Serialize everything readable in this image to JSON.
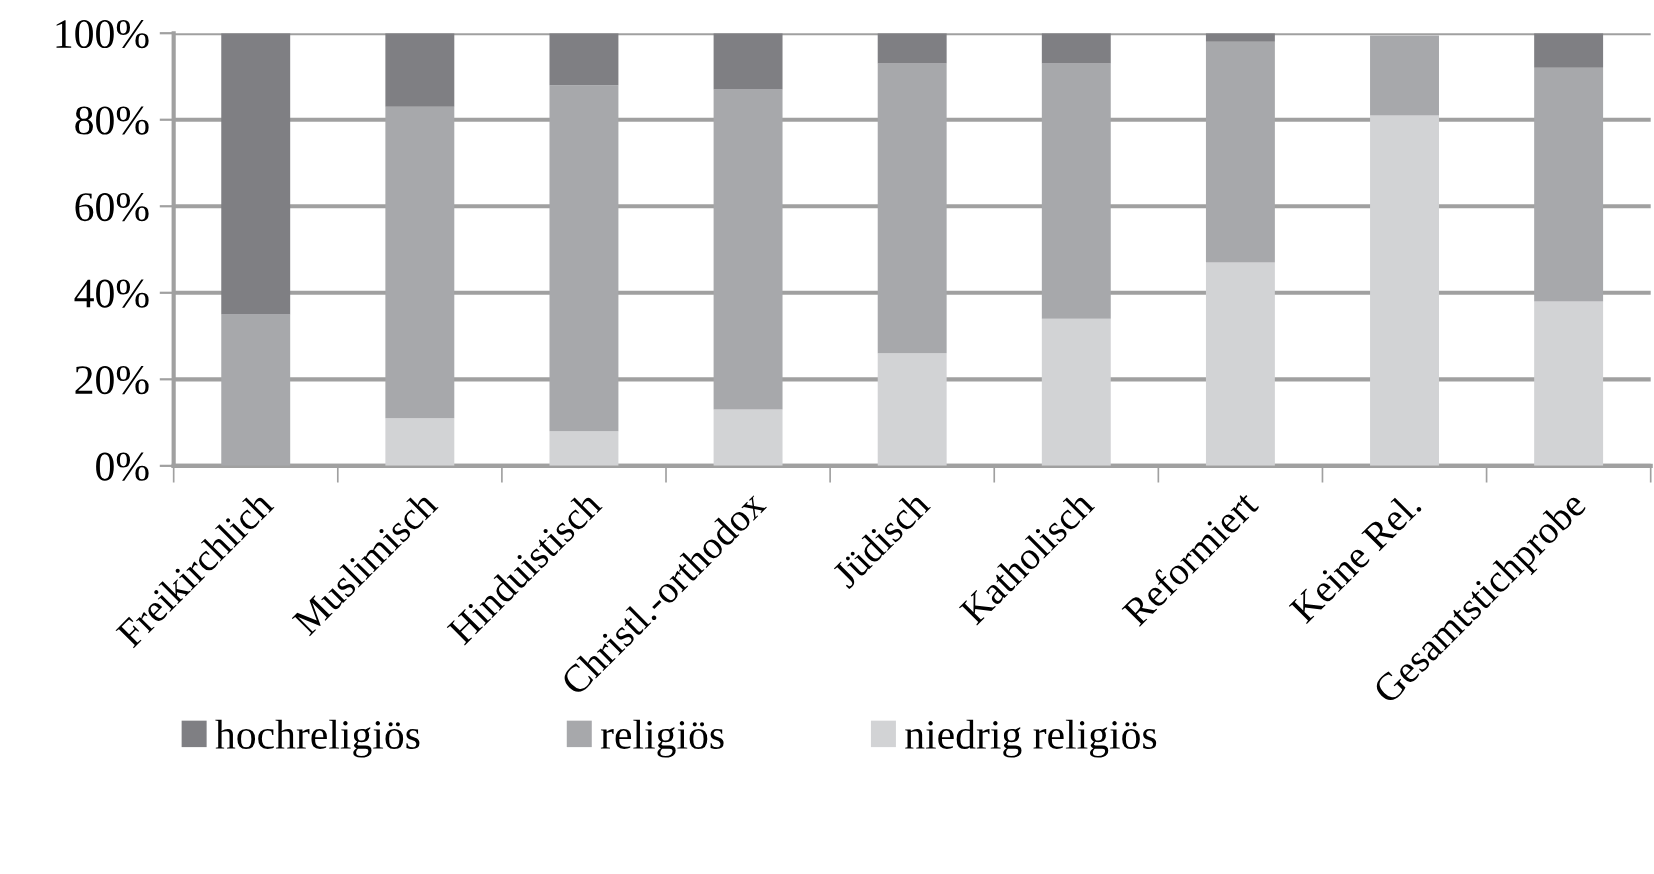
{
  "chart_data": {
    "type": "bar",
    "stacked": true,
    "categories": [
      "Freikirchlich",
      "Muslimisch",
      "Hinduistisch",
      "Christl.-orthodox",
      "Jüdisch",
      "Katholisch",
      "Reformiert",
      "Keine Rel.",
      "Gesamtstichprobe"
    ],
    "series": [
      {
        "name": "niedrig religiös",
        "color": "#d2d3d5",
        "values": [
          0,
          11,
          8,
          13,
          26,
          34,
          47,
          81,
          38
        ]
      },
      {
        "name": "religiös",
        "color": "#a7a8ab",
        "values": [
          35,
          72,
          80,
          74,
          67,
          59,
          51,
          18.5,
          54
        ]
      },
      {
        "name": "hochreligiös",
        "color": "#7f7f83",
        "values": [
          65,
          17,
          12,
          13,
          7,
          7,
          2,
          null,
          8
        ]
      }
    ],
    "ylim": [
      0,
      100
    ],
    "yticks": [
      {
        "value": 0,
        "label": "0%"
      },
      {
        "value": 20,
        "label": "20%"
      },
      {
        "value": 40,
        "label": "40%"
      },
      {
        "value": 60,
        "label": "60%"
      },
      {
        "value": 80,
        "label": "80%"
      },
      {
        "value": 100,
        "label": "100%"
      }
    ],
    "grid": "y",
    "legend": "bottom"
  }
}
